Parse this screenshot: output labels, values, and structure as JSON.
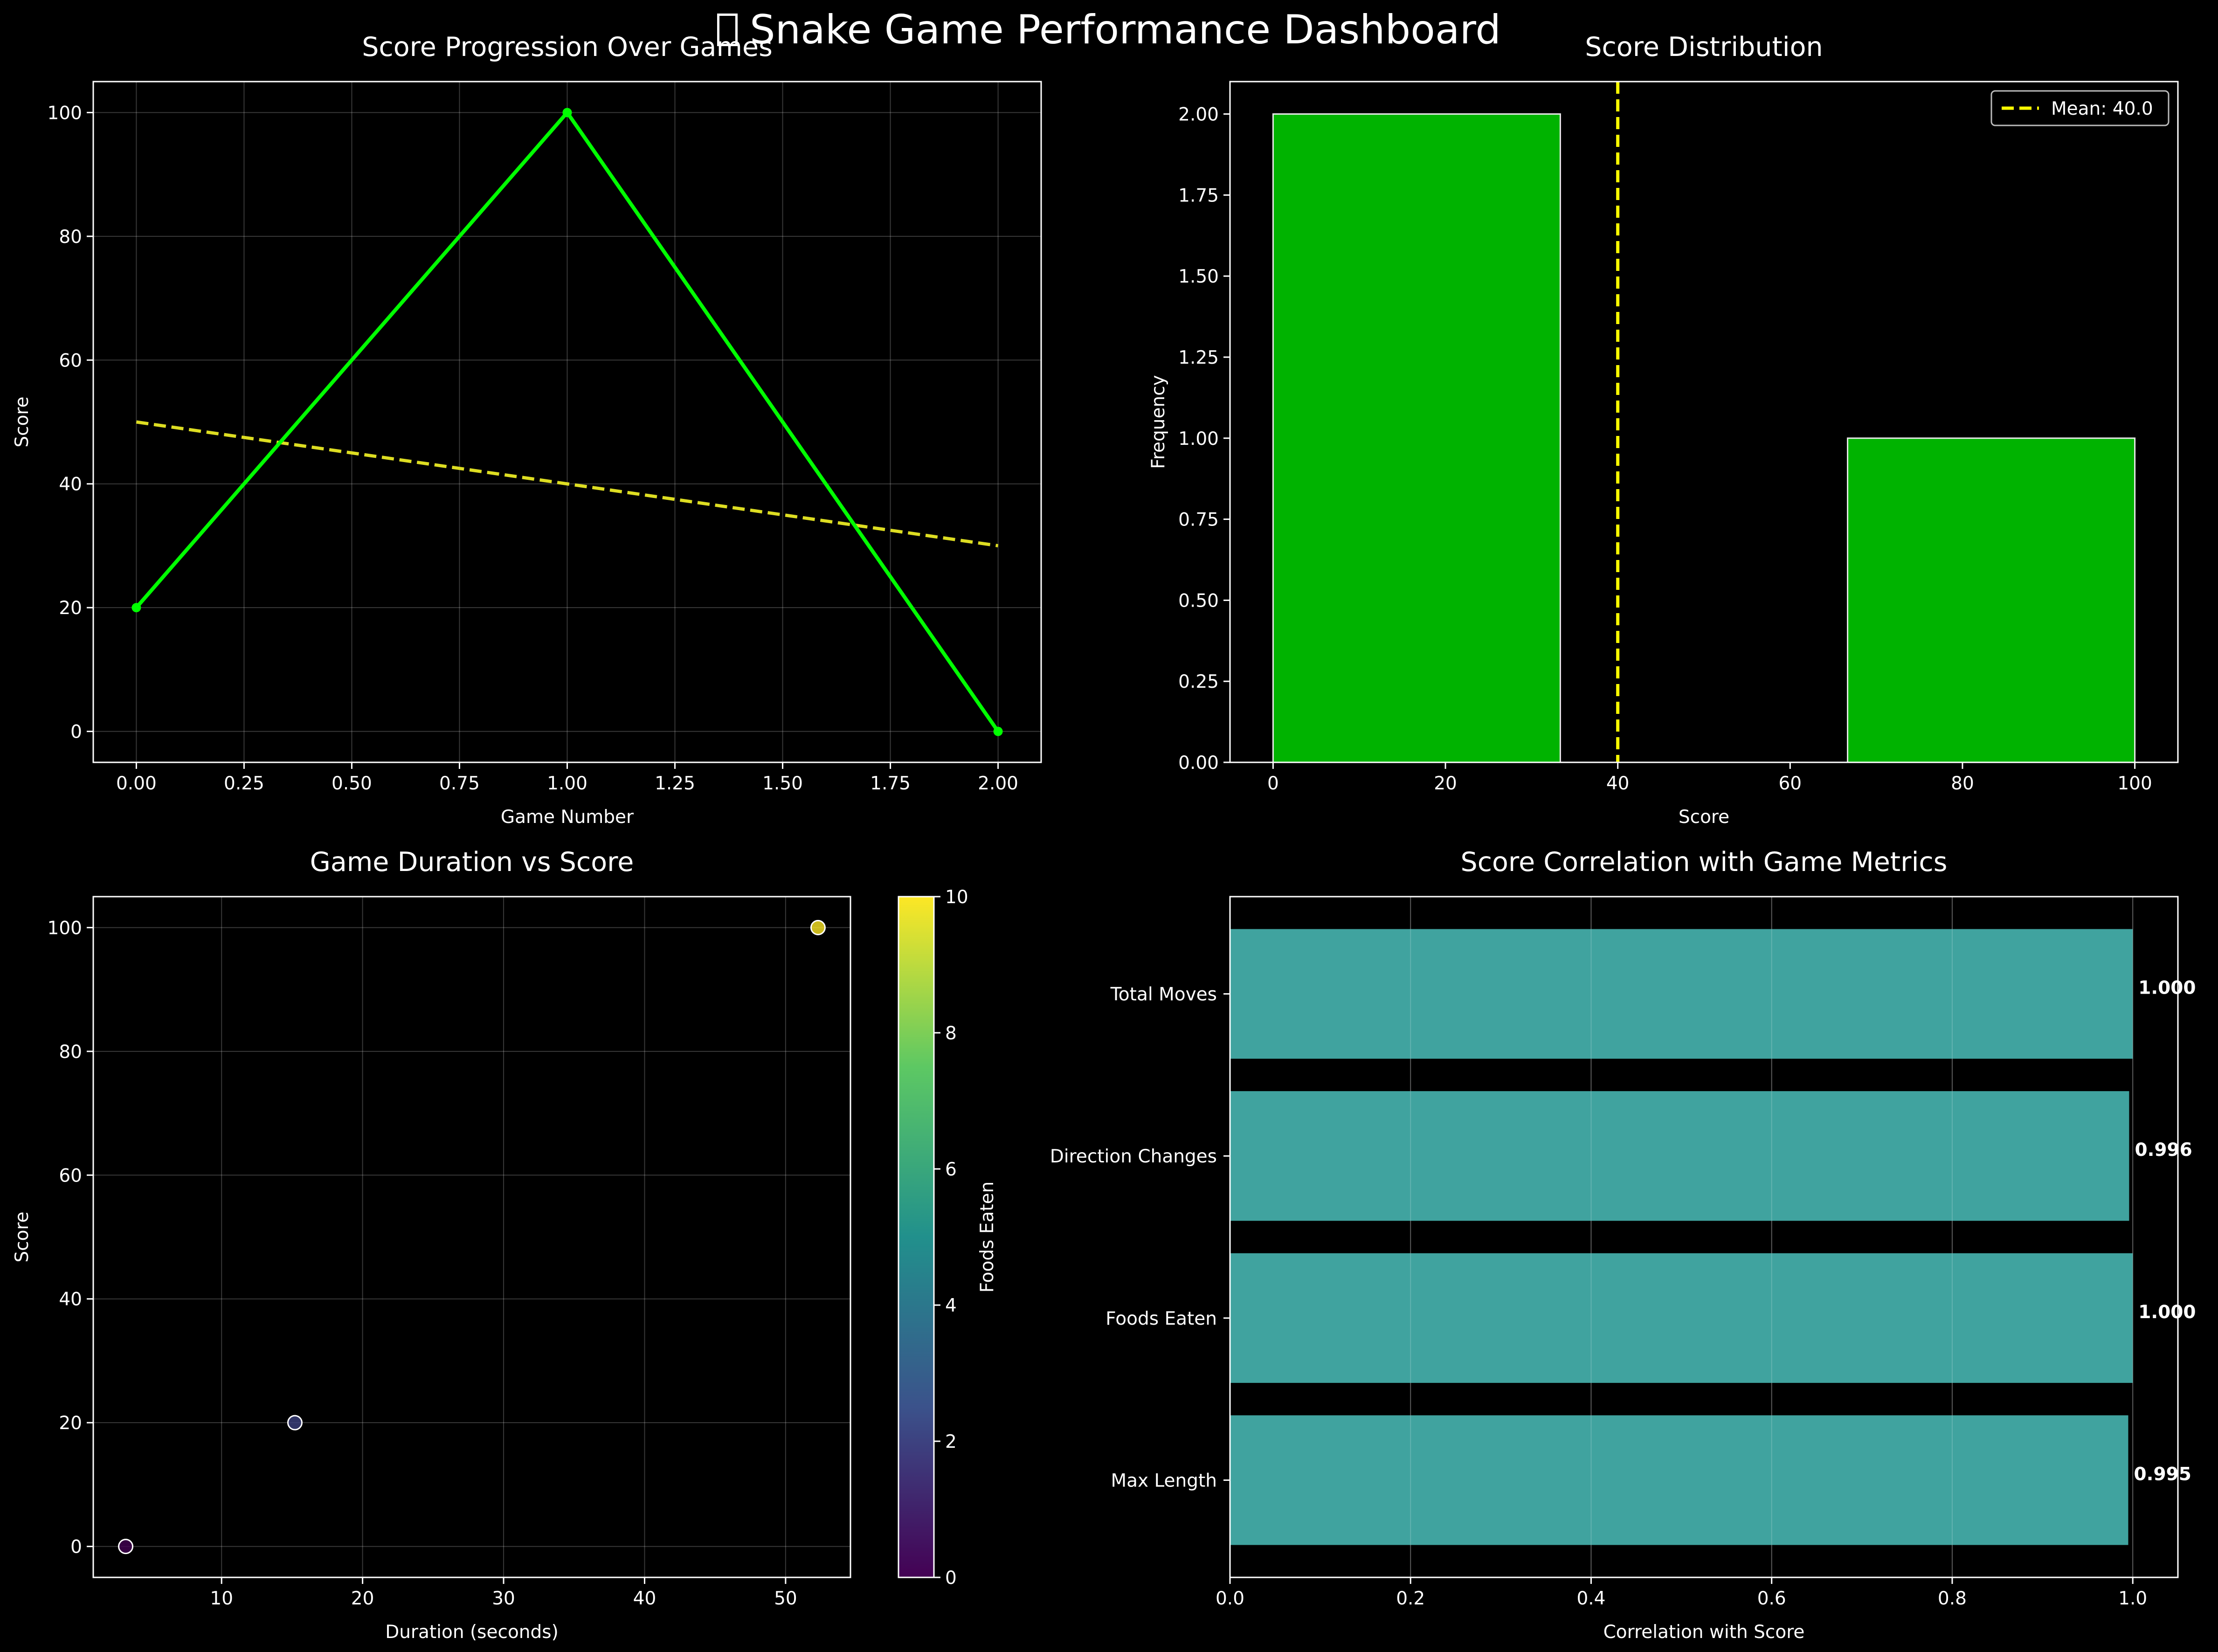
{
  "dashboard": {
    "title": "Snake Game Performance Dashboard",
    "title_icon": "missing-glyph-icon"
  },
  "colors": {
    "background": "#000000",
    "axes": "#ffffff",
    "grid": "#ffffff",
    "line_series": "#00ff00",
    "trend": "#dddd22",
    "histogram": "#00b300",
    "mean_line": "#ffff00",
    "correlation_bars": "#40a39f",
    "colormap": [
      "#440154",
      "#3b528b",
      "#21908c",
      "#5dc863",
      "#fde725"
    ]
  },
  "chart_data": [
    {
      "id": "score_progression",
      "type": "line",
      "title": "Score Progression Over Games",
      "xlabel": "Game Number",
      "ylabel": "Score",
      "xlim": [
        -0.1,
        2.1
      ],
      "ylim": [
        -5,
        105
      ],
      "xticks": [
        0,
        0.25,
        0.5,
        0.75,
        1,
        1.25,
        1.5,
        1.75,
        2
      ],
      "xtick_labels": [
        "0.00",
        "0.25",
        "0.50",
        "0.75",
        "1.00",
        "1.25",
        "1.50",
        "1.75",
        "2.00"
      ],
      "yticks": [
        0,
        20,
        40,
        60,
        80,
        100
      ],
      "ytick_labels": [
        "0",
        "20",
        "40",
        "60",
        "80",
        "100"
      ],
      "grid": true,
      "series": [
        {
          "x": [
            0,
            1,
            2
          ],
          "y": [
            20,
            100,
            0
          ],
          "style": "solid",
          "markers": true
        },
        {
          "x": [
            0,
            2
          ],
          "y": [
            50,
            30
          ],
          "style": "dashed",
          "markers": false
        }
      ]
    },
    {
      "id": "score_distribution",
      "type": "bar",
      "title": "Score Distribution",
      "xlabel": "Score",
      "ylabel": "Frequency",
      "xlim": [
        -5,
        105
      ],
      "ylim": [
        0,
        2.1
      ],
      "xticks": [
        0,
        20,
        40,
        60,
        80,
        100
      ],
      "xtick_labels": [
        "0",
        "20",
        "40",
        "60",
        "80",
        "100"
      ],
      "yticks": [
        0,
        0.25,
        0.5,
        0.75,
        1,
        1.25,
        1.5,
        1.75,
        2
      ],
      "ytick_labels": [
        "0.00",
        "0.25",
        "0.50",
        "0.75",
        "1.00",
        "1.25",
        "1.50",
        "1.75",
        "2.00"
      ],
      "grid": false,
      "bins": [
        {
          "start": 0,
          "end": 33.33,
          "count": 2
        },
        {
          "start": 33.33,
          "end": 66.67,
          "count": 0
        },
        {
          "start": 66.67,
          "end": 100,
          "count": 1
        }
      ],
      "mean": 40.0,
      "legend": {
        "position": "top-right",
        "entries": [
          "Mean: 40.0"
        ]
      }
    },
    {
      "id": "duration_vs_score",
      "type": "scatter",
      "title": "Game Duration vs Score",
      "xlabel": "Duration (seconds)",
      "ylabel": "Score",
      "xlim": [
        0.9,
        54.6
      ],
      "ylim": [
        -5,
        105
      ],
      "xticks": [
        10,
        20,
        30,
        40,
        50
      ],
      "xtick_labels": [
        "10",
        "20",
        "30",
        "40",
        "50"
      ],
      "yticks": [
        0,
        20,
        40,
        60,
        80,
        100
      ],
      "ytick_labels": [
        "0",
        "20",
        "40",
        "60",
        "80",
        "100"
      ],
      "grid": true,
      "points": [
        {
          "x": 3.2,
          "y": 0,
          "foods": 0
        },
        {
          "x": 15.2,
          "y": 20,
          "foods": 2
        },
        {
          "x": 52.3,
          "y": 100,
          "foods": 10
        }
      ],
      "colorbar": {
        "label": "Foods Eaten",
        "range": [
          0,
          10
        ],
        "ticks": [
          0,
          2,
          4,
          6,
          8,
          10
        ],
        "tick_labels": [
          "0",
          "2",
          "4",
          "6",
          "8",
          "10"
        ]
      }
    },
    {
      "id": "score_correlation",
      "type": "bar",
      "orientation": "horizontal",
      "title": "Score Correlation with Game Metrics",
      "xlabel": "Correlation with Score",
      "ylabel": "",
      "xlim": [
        0,
        1.05
      ],
      "xticks": [
        0,
        0.2,
        0.4,
        0.6,
        0.8,
        1.0
      ],
      "xtick_labels": [
        "0.0",
        "0.2",
        "0.4",
        "0.6",
        "0.8",
        "1.0"
      ],
      "grid": true,
      "categories": [
        "Max Length",
        "Foods Eaten",
        "Direction Changes",
        "Total Moves"
      ],
      "values": [
        0.995,
        1.0,
        0.996,
        1.0
      ],
      "value_labels": [
        "0.995",
        "1.000",
        "0.996",
        "1.000"
      ]
    }
  ]
}
